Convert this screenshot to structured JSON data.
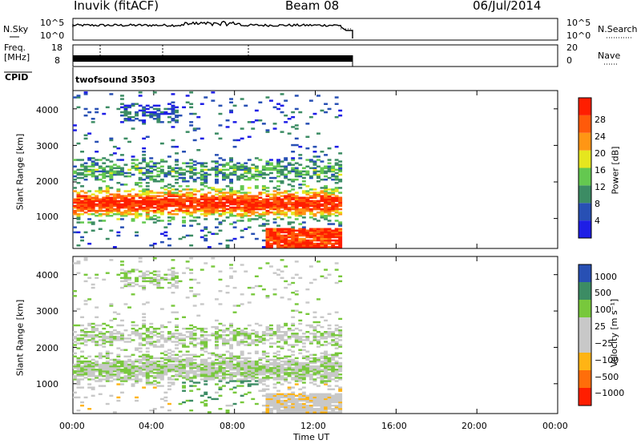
{
  "header": {
    "station": "Inuvik (fitACF)",
    "beam": "Beam 08",
    "date": "06/Jul/2014"
  },
  "strip_labels": {
    "nsky": "N.Sky",
    "nsky_ticks": [
      "10^5",
      "10^0"
    ],
    "nsearch": "N.Search",
    "nsearch_ticks": [
      "10^5",
      "10^0"
    ],
    "freq_line1": "Freq.",
    "freq_line2": "[MHz]",
    "freq_ticks": [
      "18",
      "8"
    ],
    "nave": "Nave",
    "nave_ticks": [
      "20",
      "0"
    ],
    "cpid": "CPID",
    "cpid_value": "twofsound 3503"
  },
  "colors": {
    "power": [
      "#1e1ee6",
      "#2850b4",
      "#3c8c64",
      "#64c850",
      "#e6e61e",
      "#ff9614",
      "#ff5a0a",
      "#ff1e00"
    ],
    "velocity": [
      "#ff1e00",
      "#ff6e0a",
      "#ffb414",
      "#c8c8c8",
      "#c8c8c8",
      "#78c83c",
      "#3c8c64",
      "#2850b4"
    ]
  },
  "chart_data": [
    {
      "type": "heatmap",
      "panel": "power",
      "xlabel": "",
      "ylabel": "Slant Range [km]",
      "xlim": [
        0,
        24
      ],
      "ylim": [
        180,
        4500
      ],
      "yticks": [
        "1000",
        "2000",
        "3000",
        "4000"
      ],
      "colorbar_label": "Power [dB]",
      "colorbar_ticks": [
        "4",
        "8",
        "12",
        "16",
        "20",
        "24",
        "28"
      ],
      "colorbar_range": [
        0,
        32
      ],
      "data_end_time": 13.3
    },
    {
      "type": "heatmap",
      "panel": "velocity",
      "xlabel": "Time UT",
      "ylabel": "Slant Range [km]",
      "xlim": [
        0,
        24
      ],
      "ylim": [
        180,
        4500
      ],
      "xticks": [
        "00:00",
        "04:00",
        "08:00",
        "12:00",
        "16:00",
        "20:00",
        "00:00"
      ],
      "yticks": [
        "1000",
        "2000",
        "3000",
        "4000"
      ],
      "colorbar_label": "Velocity [m s⁻¹]",
      "colorbar_ticks": [
        "−1000",
        "−500",
        "−100",
        "−25",
        "25",
        "100",
        "500",
        "1000"
      ],
      "data_end_time": 13.3
    }
  ]
}
